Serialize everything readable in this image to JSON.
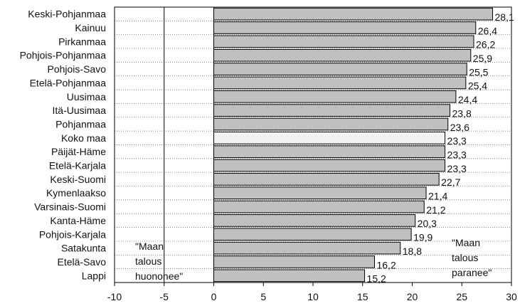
{
  "chart_data": {
    "type": "bar",
    "orientation": "horizontal",
    "categories": [
      "Keski-Pohjanmaa",
      "Kainuu",
      "Pirkanmaa",
      "Pohjois-Pohjanmaa",
      "Pohjois-Savo",
      "Etelä-Pohjanmaa",
      "Uusimaa",
      "Itä-Uusimaa",
      "Pohjanmaa",
      "Koko maa",
      "Päijät-Häme",
      "Etelä-Karjala",
      "Keski-Suomi",
      "Kymenlaakso",
      "Varsinais-Suomi",
      "Kanta-Häme",
      "Pohjois-Karjala",
      "Satakunta",
      "Etelä-Savo",
      "Lappi"
    ],
    "values": [
      28.1,
      26.4,
      26.2,
      25.9,
      25.5,
      25.4,
      24.4,
      23.8,
      23.6,
      23.3,
      23.3,
      23.3,
      22.7,
      21.4,
      21.2,
      20.3,
      19.9,
      18.8,
      16.2,
      15.2
    ],
    "value_labels": [
      "28,1",
      "26,4",
      "26,2",
      "25,9",
      "25,5",
      "25,4",
      "24,4",
      "23,8",
      "23,6",
      "23,3",
      "23,3",
      "23,3",
      "22,7",
      "21,4",
      "21,2",
      "20,3",
      "19,9",
      "18,8",
      "16,2",
      "15,2"
    ],
    "highlight_category": "Koko maa",
    "xlim": [
      -10,
      30
    ],
    "xticks": [
      -10,
      -5,
      0,
      5,
      10,
      15,
      20,
      25,
      30
    ],
    "xtick_labels": [
      "-10",
      "-5",
      "0",
      "5",
      "10",
      "15",
      "20",
      "25",
      "30"
    ],
    "title": "",
    "xlabel": "",
    "ylabel": "",
    "grid": "horizontal dotted lines between rows, solid vertical reference lines at -5 and 0",
    "legend": "none",
    "annotations": {
      "left": [
        "\"Maan",
        "talous",
        "huononee\""
      ],
      "right": [
        "\"Maan",
        "talous",
        "paranee\""
      ]
    },
    "colors": {
      "bar_fill": "#c0c0c0",
      "highlight_fill": "#f2f2f2",
      "bar_stroke": "#000000",
      "grid": "#555555"
    }
  }
}
